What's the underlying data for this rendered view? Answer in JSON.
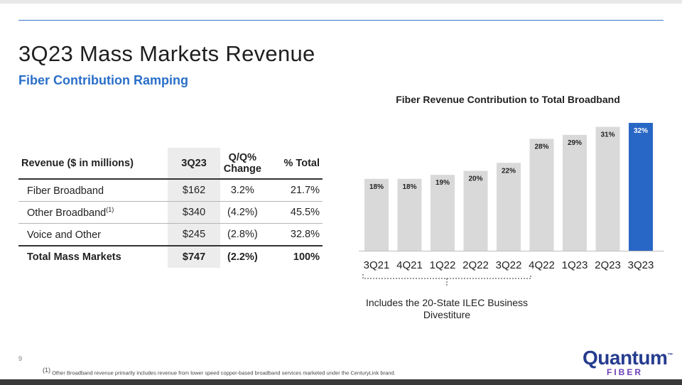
{
  "slide": {
    "title": "3Q23 Mass Markets Revenue",
    "subtitle": "Fiber Contribution Ramping",
    "page_number": "9",
    "footnote_marker": "(1)",
    "footnote": "Other Broadband revenue primarily includes revenue from lower speed copper-based broadband services marketed under the CenturyLink brand.",
    "accent_color": "#2a6fc9"
  },
  "table": {
    "headers": {
      "label": "Revenue ($ in millions)",
      "quarter": "3Q23",
      "change_line1": "Q/Q%",
      "change_line2": "Change",
      "total": "% Total"
    },
    "rows": [
      {
        "label": "Fiber Broadband",
        "sup": "",
        "value": "$162",
        "change": "3.2%",
        "pct": "21.7%"
      },
      {
        "label": "Other Broadband",
        "sup": "(1)",
        "value": "$340",
        "change": "(4.2%)",
        "pct": "45.5%"
      },
      {
        "label": "Voice and Other",
        "sup": "",
        "value": "$245",
        "change": "(2.8%)",
        "pct": "32.8%"
      }
    ],
    "total": {
      "label": "Total Mass Markets",
      "value": "$747",
      "change": "(2.2%)",
      "pct": "100%"
    }
  },
  "chart_data": {
    "type": "bar",
    "title": "Fiber Revenue Contribution to Total Broadband",
    "categories": [
      "3Q21",
      "4Q21",
      "1Q22",
      "2Q22",
      "3Q22",
      "4Q22",
      "1Q23",
      "2Q23",
      "3Q23"
    ],
    "values": [
      18,
      18,
      19,
      20,
      22,
      28,
      29,
      31,
      32
    ],
    "data_labels": [
      "18%",
      "18%",
      "19%",
      "20%",
      "22%",
      "28%",
      "29%",
      "31%",
      "32%"
    ],
    "highlight_index": 8,
    "bar_color": "#d9d9d9",
    "highlight_color": "#2867c5",
    "ylim": [
      0,
      32
    ],
    "xlabel": "",
    "ylabel": "",
    "grid": false,
    "annotation": "Includes the 20-State ILEC Business Divestiture",
    "annotation_range": [
      "3Q21",
      "3Q22"
    ]
  },
  "logo": {
    "main": "Quantum",
    "sub": "FIBER",
    "mark": "™"
  }
}
